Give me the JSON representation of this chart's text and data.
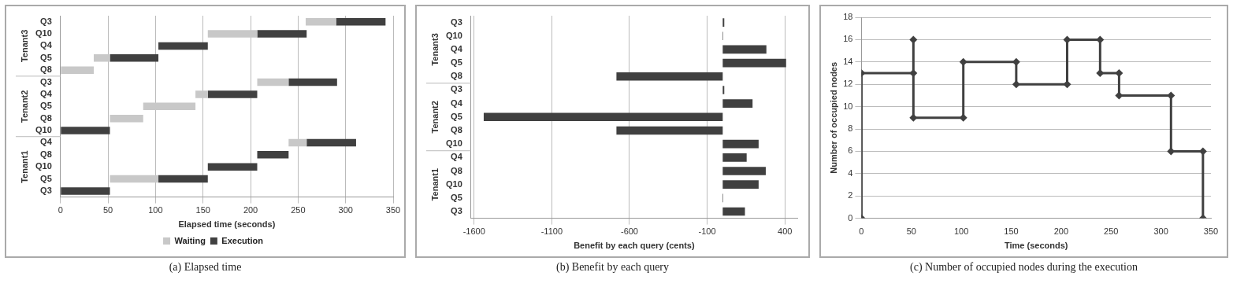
{
  "chart_data": [
    {
      "type": "bar",
      "title": "(a) Elapsed time",
      "orientation": "horizontal",
      "xlabel": "Elapsed time (seconds)",
      "categories": [
        "Q3",
        "Q10",
        "Q4",
        "Q5",
        "Q8",
        "Q3",
        "Q4",
        "Q5",
        "Q8",
        "Q10",
        "Q4",
        "Q8",
        "Q10",
        "Q5",
        "Q3"
      ],
      "series": [
        {
          "name": "Waiting",
          "color": "#c8c8c8",
          "base": [
            258,
            155,
            null,
            35,
            0,
            207,
            142,
            87,
            52,
            null,
            240,
            null,
            null,
            52,
            null
          ],
          "values": [
            32,
            52,
            null,
            17,
            35,
            33,
            13,
            55,
            35,
            null,
            19,
            null,
            null,
            51,
            null
          ]
        },
        {
          "name": "Execution",
          "color": "#404040",
          "base": [
            290,
            207,
            103,
            52,
            null,
            240,
            155,
            null,
            null,
            0,
            259,
            207,
            155,
            103,
            0
          ],
          "values": [
            52,
            52,
            52,
            51,
            null,
            51,
            52,
            null,
            null,
            52,
            52,
            33,
            52,
            52,
            52
          ]
        }
      ],
      "xlim": [
        0,
        350
      ],
      "xticks": [
        0,
        50,
        100,
        150,
        200,
        250,
        300,
        350
      ],
      "grid": "x",
      "legend": "bottom",
      "annotations": [
        "Tenant3",
        "Tenant2",
        "Tenant1"
      ]
    },
    {
      "type": "bar",
      "title": "(b) Benefit by each query",
      "orientation": "horizontal",
      "xlabel": "Benefit by each query (cents)",
      "categories": [
        "Q3",
        "Q10",
        "Q4",
        "Q5",
        "Q8",
        "Q3",
        "Q4",
        "Q5",
        "Q8",
        "Q10",
        "Q4",
        "Q8",
        "Q10",
        "Q5",
        "Q3"
      ],
      "values": [
        10,
        3,
        281,
        408,
        -684,
        10,
        192,
        -1538,
        -684,
        231,
        154,
        277,
        231,
        3,
        143
      ],
      "color": "#404040",
      "xlim": [
        -1620,
        480
      ],
      "xticks": [
        -1600,
        -1100,
        -600,
        -100,
        400
      ],
      "grid": "x",
      "annotations": [
        "Tenant3",
        "Tenant2",
        "Tenant1"
      ]
    },
    {
      "type": "line",
      "title": "(c) Number of occupied nodes during the execution",
      "xlabel": "Time (seconds)",
      "ylabel": "Number of occupied nodes",
      "x": [
        0,
        0,
        52,
        52,
        52,
        102,
        102,
        155,
        155,
        206,
        206,
        239,
        239,
        258,
        258,
        310,
        310,
        342,
        342
      ],
      "values": [
        0,
        13,
        13,
        16,
        9,
        9,
        14,
        14,
        12,
        12,
        16,
        16,
        13,
        13,
        11,
        11,
        6,
        6,
        0
      ],
      "color": "#404040",
      "marker": "diamond",
      "line_style": "solid",
      "xlim": [
        0,
        350
      ],
      "xticks": [
        0,
        50,
        100,
        150,
        200,
        250,
        300,
        350
      ],
      "ylim": [
        0,
        18
      ],
      "yticks": [
        0,
        2,
        4,
        6,
        8,
        10,
        12,
        14,
        16,
        18
      ],
      "grid": "y"
    }
  ]
}
